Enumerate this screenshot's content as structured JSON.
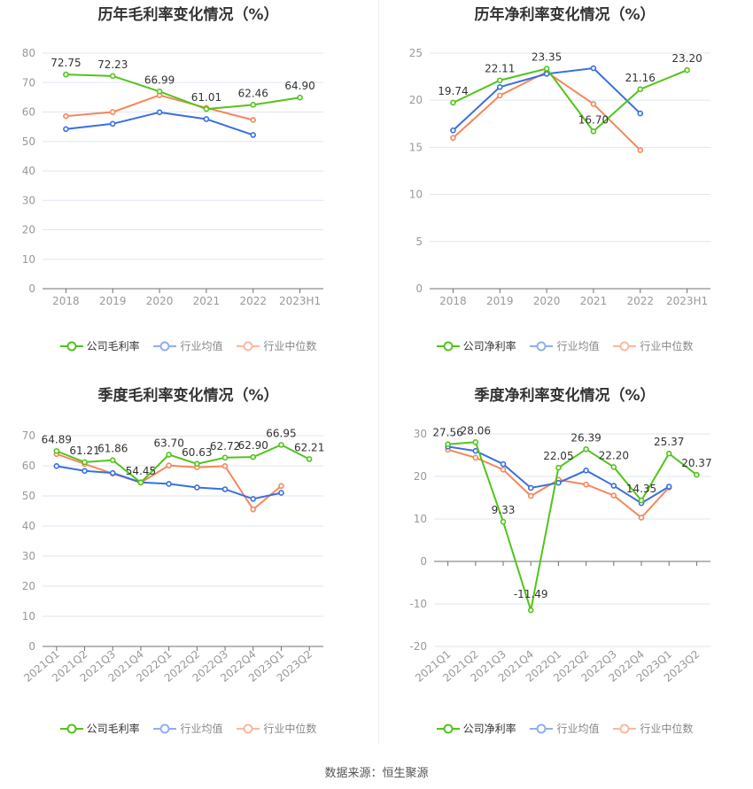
{
  "colors": {
    "company": "#52c41a",
    "avg": "#3a6fe0",
    "median": "#f6875a",
    "legend_avg": "#8fb0f0",
    "legend_median": "#f9b9a0"
  },
  "legend": {
    "company_gross": "公司毛利率",
    "company_net": "公司净利率",
    "avg": "行业均值",
    "median": "行业中位数"
  },
  "footer": "数据来源：恒生聚源",
  "chart_data": [
    {
      "type": "line",
      "title": "历年毛利率变化情况（%）",
      "categories": [
        "2018",
        "2019",
        "2020",
        "2021",
        "2022",
        "2023H1"
      ],
      "ylim": [
        0,
        80
      ],
      "yticks": [
        "0",
        "10",
        "20",
        "30",
        "40",
        "50",
        "60",
        "70",
        "80"
      ],
      "series": [
        {
          "name": "公司毛利率",
          "values": [
            72.75,
            72.23,
            66.99,
            61.01,
            62.46,
            64.9
          ],
          "labels": [
            "72.75",
            "72.23",
            "66.99",
            "61.01",
            "62.46",
            "64.90"
          ]
        },
        {
          "name": "行业均值",
          "values": [
            54.2,
            56.0,
            59.9,
            57.6,
            52.2,
            null
          ]
        },
        {
          "name": "行业中位数",
          "values": [
            58.6,
            60.0,
            65.7,
            61.4,
            57.3,
            null
          ]
        }
      ]
    },
    {
      "type": "line",
      "title": "历年净利率变化情况（%）",
      "categories": [
        "2018",
        "2019",
        "2020",
        "2021",
        "2022",
        "2023H1"
      ],
      "ylim": [
        0,
        25
      ],
      "yticks": [
        "0",
        "5",
        "10",
        "15",
        "20",
        "25"
      ],
      "series": [
        {
          "name": "公司净利率",
          "values": [
            19.74,
            22.11,
            23.35,
            16.7,
            21.16,
            23.2
          ],
          "labels": [
            "19.74",
            "22.11",
            "23.35",
            "16.70",
            "21.16",
            "23.20"
          ]
        },
        {
          "name": "行业均值",
          "values": [
            16.8,
            21.4,
            22.8,
            23.4,
            18.6,
            null
          ]
        },
        {
          "name": "行业中位数",
          "values": [
            16.0,
            20.5,
            23.0,
            19.6,
            14.7,
            null
          ]
        }
      ]
    },
    {
      "type": "line",
      "title": "季度毛利率变化情况（%）",
      "categories": [
        "2021Q1",
        "2021Q2",
        "2021Q3",
        "2021Q4",
        "2022Q1",
        "2022Q2",
        "2022Q3",
        "2022Q4",
        "2023Q1",
        "2023Q2"
      ],
      "ylim": [
        0,
        70
      ],
      "yticks": [
        "0",
        "10",
        "20",
        "30",
        "40",
        "50",
        "60",
        "70"
      ],
      "series": [
        {
          "name": "公司毛利率",
          "values": [
            64.89,
            61.21,
            61.86,
            54.45,
            63.7,
            60.63,
            62.72,
            62.9,
            66.95,
            62.21
          ],
          "labels": [
            "64.89",
            "61.21",
            "61.86",
            "54.45",
            "63.70",
            "60.63",
            "62.72",
            "62.90",
            "66.95",
            "62.21"
          ]
        },
        {
          "name": "行业均值",
          "values": [
            59.9,
            58.3,
            57.6,
            54.5,
            54.0,
            52.8,
            52.2,
            49.0,
            51.0,
            null
          ]
        },
        {
          "name": "行业中位数",
          "values": [
            63.9,
            60.6,
            57.4,
            54.4,
            60.1,
            59.5,
            59.9,
            45.5,
            53.3,
            null
          ]
        }
      ]
    },
    {
      "type": "line",
      "title": "季度净利率变化情况（%）",
      "categories": [
        "2021Q1",
        "2021Q2",
        "2021Q3",
        "2021Q4",
        "2022Q1",
        "2022Q2",
        "2022Q3",
        "2022Q4",
        "2023Q1",
        "2023Q2"
      ],
      "ylim": [
        -20,
        30
      ],
      "yticks": [
        "-20",
        "-10",
        "0",
        "10",
        "20",
        "30"
      ],
      "series": [
        {
          "name": "公司净利率",
          "values": [
            27.56,
            28.06,
            9.33,
            -11.49,
            22.05,
            26.39,
            22.2,
            14.35,
            25.37,
            20.37
          ],
          "labels": [
            "27.56",
            "28.06",
            "9.33",
            "-11.49",
            "22.05",
            "26.39",
            "22.20",
            "14.35",
            "25.37",
            "20.37"
          ]
        },
        {
          "name": "行业均值",
          "values": [
            27.0,
            26.0,
            22.9,
            17.3,
            18.5,
            21.4,
            17.8,
            13.7,
            17.6,
            null
          ]
        },
        {
          "name": "行业中位数",
          "values": [
            26.3,
            24.4,
            21.6,
            15.4,
            19.2,
            18.1,
            15.5,
            10.3,
            17.4,
            null
          ]
        }
      ]
    }
  ]
}
